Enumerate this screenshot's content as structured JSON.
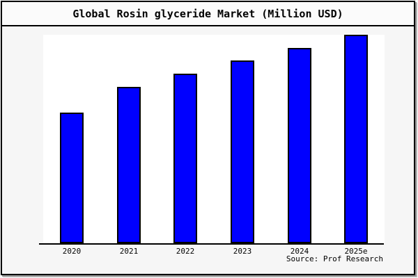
{
  "page": {
    "background": "#f8f8f8",
    "plot_background": "#ffffff",
    "frame_border_color": "#000000"
  },
  "chart_data": {
    "type": "bar",
    "title": "Global Rosin glyceride Market (Million USD)",
    "categories": [
      "2020",
      "2021",
      "2022",
      "2023",
      "2024",
      "2025e"
    ],
    "values": [
      188,
      225,
      244,
      263,
      281,
      300
    ],
    "values_note": "no y-axis scale or data labels shown; values are relative bar heights estimated from pixels (tallest bar = 300)",
    "xlabel": "",
    "ylabel": "",
    "ylim": [
      0,
      300
    ],
    "grid": false,
    "y_axis_visible": false,
    "legend": "none",
    "bar_color": "#0000ff",
    "bar_edge_color": "#000000",
    "source_note": "Source: Prof Research"
  }
}
